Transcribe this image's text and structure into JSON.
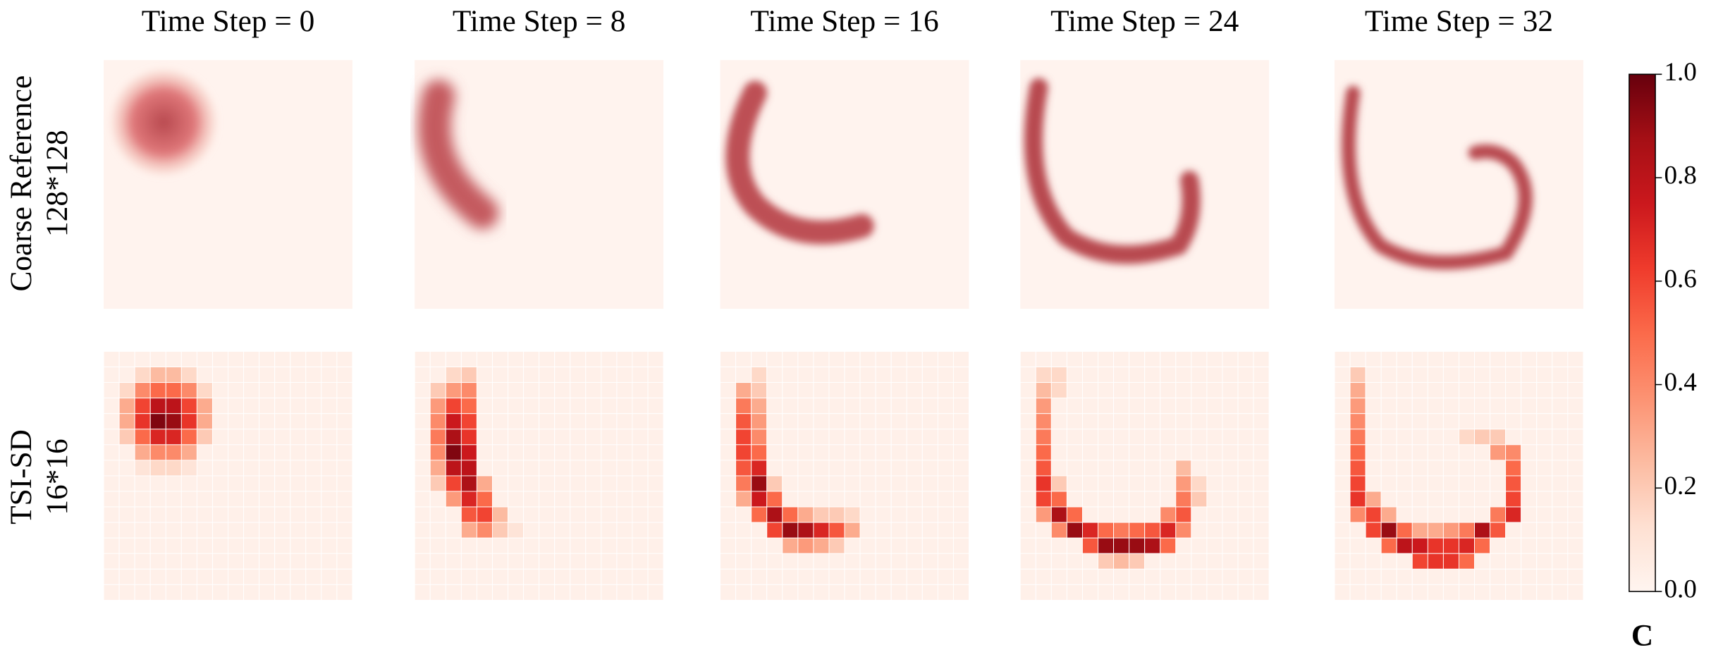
{
  "chart_data": {
    "type": "heatmap",
    "colormap": "Reds",
    "clim": [
      0,
      1
    ],
    "cticks": [
      {
        "value": 0,
        "label": "0.0"
      },
      {
        "value": 0.2,
        "label": "0.2"
      },
      {
        "value": 0.4,
        "label": "0.4"
      },
      {
        "value": 0.6,
        "label": "0.6"
      },
      {
        "value": 0.8,
        "label": "0.8"
      },
      {
        "value": 1,
        "label": "1.0"
      }
    ],
    "colorbar_label": "C",
    "column_titles": [
      "Time Step = 0",
      "Time Step = 8",
      "Time Step = 16",
      "Time Step = 24",
      "Time Step = 32"
    ],
    "row_labels": [
      [
        "Coarse Reference",
        "128*128"
      ],
      [
        "TSI-SD",
        "16*16"
      ]
    ],
    "grid_size": 16,
    "background": 0.03,
    "panels": [
      {
        "cells": [
          [
            1,
            2,
            0.15
          ],
          [
            1,
            3,
            0.25
          ],
          [
            1,
            4,
            0.25
          ],
          [
            1,
            5,
            0.15
          ],
          [
            2,
            1,
            0.15
          ],
          [
            2,
            2,
            0.4
          ],
          [
            2,
            3,
            0.5
          ],
          [
            2,
            4,
            0.5
          ],
          [
            2,
            5,
            0.4
          ],
          [
            2,
            6,
            0.15
          ],
          [
            3,
            1,
            0.3
          ],
          [
            3,
            2,
            0.6
          ],
          [
            3,
            3,
            0.8
          ],
          [
            3,
            4,
            0.8
          ],
          [
            3,
            5,
            0.6
          ],
          [
            3,
            6,
            0.3
          ],
          [
            4,
            1,
            0.3
          ],
          [
            4,
            2,
            0.65
          ],
          [
            4,
            3,
            0.95
          ],
          [
            4,
            4,
            0.9
          ],
          [
            4,
            5,
            0.65
          ],
          [
            4,
            6,
            0.3
          ],
          [
            5,
            1,
            0.2
          ],
          [
            5,
            2,
            0.5
          ],
          [
            5,
            3,
            0.7
          ],
          [
            5,
            4,
            0.7
          ],
          [
            5,
            5,
            0.5
          ],
          [
            5,
            6,
            0.2
          ],
          [
            6,
            2,
            0.3
          ],
          [
            6,
            3,
            0.4
          ],
          [
            6,
            4,
            0.4
          ],
          [
            6,
            5,
            0.3
          ],
          [
            7,
            2,
            0.1
          ],
          [
            7,
            3,
            0.15
          ],
          [
            7,
            4,
            0.15
          ],
          [
            7,
            5,
            0.1
          ]
        ]
      },
      {
        "cells": [
          [
            1,
            2,
            0.15
          ],
          [
            1,
            3,
            0.2
          ],
          [
            2,
            1,
            0.2
          ],
          [
            2,
            2,
            0.35
          ],
          [
            2,
            3,
            0.4
          ],
          [
            3,
            1,
            0.35
          ],
          [
            3,
            2,
            0.6
          ],
          [
            3,
            3,
            0.5
          ],
          [
            4,
            1,
            0.4
          ],
          [
            4,
            2,
            0.75
          ],
          [
            4,
            3,
            0.6
          ],
          [
            5,
            1,
            0.45
          ],
          [
            5,
            2,
            0.85
          ],
          [
            5,
            3,
            0.65
          ],
          [
            6,
            1,
            0.4
          ],
          [
            6,
            2,
            0.95
          ],
          [
            6,
            3,
            0.75
          ],
          [
            7,
            1,
            0.3
          ],
          [
            7,
            2,
            0.8
          ],
          [
            7,
            3,
            0.8
          ],
          [
            8,
            1,
            0.2
          ],
          [
            8,
            2,
            0.6
          ],
          [
            8,
            3,
            0.85
          ],
          [
            8,
            4,
            0.3
          ],
          [
            9,
            2,
            0.35
          ],
          [
            9,
            3,
            0.7
          ],
          [
            9,
            4,
            0.5
          ],
          [
            10,
            3,
            0.55
          ],
          [
            10,
            4,
            0.6
          ],
          [
            10,
            5,
            0.25
          ],
          [
            11,
            3,
            0.3
          ],
          [
            11,
            4,
            0.4
          ],
          [
            11,
            5,
            0.2
          ],
          [
            11,
            6,
            0.1
          ]
        ]
      },
      {
        "cells": [
          [
            1,
            2,
            0.15
          ],
          [
            2,
            1,
            0.3
          ],
          [
            2,
            2,
            0.2
          ],
          [
            3,
            1,
            0.45
          ],
          [
            3,
            2,
            0.3
          ],
          [
            4,
            1,
            0.55
          ],
          [
            4,
            2,
            0.35
          ],
          [
            5,
            1,
            0.6
          ],
          [
            5,
            2,
            0.4
          ],
          [
            6,
            1,
            0.6
          ],
          [
            6,
            2,
            0.5
          ],
          [
            7,
            1,
            0.55
          ],
          [
            7,
            2,
            0.7
          ],
          [
            8,
            1,
            0.45
          ],
          [
            8,
            2,
            0.9
          ],
          [
            8,
            3,
            0.2
          ],
          [
            9,
            1,
            0.3
          ],
          [
            9,
            2,
            0.75
          ],
          [
            9,
            3,
            0.5
          ],
          [
            10,
            2,
            0.5
          ],
          [
            10,
            3,
            0.85
          ],
          [
            10,
            4,
            0.5
          ],
          [
            10,
            5,
            0.3
          ],
          [
            10,
            6,
            0.2
          ],
          [
            10,
            7,
            0.2
          ],
          [
            10,
            8,
            0.15
          ],
          [
            11,
            3,
            0.6
          ],
          [
            11,
            4,
            0.9
          ],
          [
            11,
            5,
            0.85
          ],
          [
            11,
            6,
            0.7
          ],
          [
            11,
            7,
            0.55
          ],
          [
            11,
            8,
            0.3
          ],
          [
            12,
            4,
            0.3
          ],
          [
            12,
            5,
            0.35
          ],
          [
            12,
            6,
            0.3
          ],
          [
            12,
            7,
            0.2
          ]
        ]
      },
      {
        "cells": [
          [
            1,
            1,
            0.15
          ],
          [
            1,
            2,
            0.15
          ],
          [
            2,
            1,
            0.25
          ],
          [
            2,
            2,
            0.15
          ],
          [
            3,
            1,
            0.35
          ],
          [
            4,
            1,
            0.4
          ],
          [
            5,
            1,
            0.45
          ],
          [
            6,
            1,
            0.5
          ],
          [
            7,
            1,
            0.55
          ],
          [
            7,
            10,
            0.25
          ],
          [
            8,
            1,
            0.65
          ],
          [
            8,
            2,
            0.2
          ],
          [
            8,
            10,
            0.35
          ],
          [
            8,
            11,
            0.15
          ],
          [
            9,
            1,
            0.6
          ],
          [
            9,
            2,
            0.5
          ],
          [
            9,
            10,
            0.45
          ],
          [
            9,
            11,
            0.2
          ],
          [
            10,
            1,
            0.35
          ],
          [
            10,
            2,
            0.85
          ],
          [
            10,
            3,
            0.5
          ],
          [
            10,
            9,
            0.4
          ],
          [
            10,
            10,
            0.55
          ],
          [
            11,
            2,
            0.4
          ],
          [
            11,
            3,
            0.9
          ],
          [
            11,
            4,
            0.7
          ],
          [
            11,
            5,
            0.5
          ],
          [
            11,
            6,
            0.45
          ],
          [
            11,
            7,
            0.5
          ],
          [
            11,
            8,
            0.55
          ],
          [
            11,
            9,
            0.7
          ],
          [
            11,
            10,
            0.4
          ],
          [
            12,
            4,
            0.55
          ],
          [
            12,
            5,
            0.9
          ],
          [
            12,
            6,
            0.9
          ],
          [
            12,
            7,
            0.9
          ],
          [
            12,
            8,
            0.85
          ],
          [
            12,
            9,
            0.5
          ],
          [
            13,
            5,
            0.2
          ],
          [
            13,
            6,
            0.25
          ],
          [
            13,
            7,
            0.2
          ]
        ]
      },
      {
        "cells": [
          [
            1,
            1,
            0.2
          ],
          [
            2,
            1,
            0.3
          ],
          [
            3,
            1,
            0.35
          ],
          [
            4,
            1,
            0.4
          ],
          [
            5,
            1,
            0.45
          ],
          [
            5,
            8,
            0.15
          ],
          [
            5,
            9,
            0.2
          ],
          [
            5,
            10,
            0.2
          ],
          [
            6,
            1,
            0.5
          ],
          [
            6,
            10,
            0.35
          ],
          [
            6,
            11,
            0.4
          ],
          [
            7,
            1,
            0.55
          ],
          [
            7,
            11,
            0.5
          ],
          [
            8,
            1,
            0.6
          ],
          [
            8,
            11,
            0.55
          ],
          [
            9,
            1,
            0.65
          ],
          [
            9,
            2,
            0.3
          ],
          [
            9,
            11,
            0.6
          ],
          [
            10,
            1,
            0.4
          ],
          [
            10,
            2,
            0.6
          ],
          [
            10,
            3,
            0.3
          ],
          [
            10,
            10,
            0.45
          ],
          [
            10,
            11,
            0.7
          ],
          [
            11,
            2,
            0.6
          ],
          [
            11,
            3,
            0.9
          ],
          [
            11,
            4,
            0.5
          ],
          [
            11,
            5,
            0.3
          ],
          [
            11,
            6,
            0.3
          ],
          [
            11,
            7,
            0.35
          ],
          [
            11,
            8,
            0.45
          ],
          [
            11,
            9,
            0.85
          ],
          [
            11,
            10,
            0.55
          ],
          [
            12,
            3,
            0.5
          ],
          [
            12,
            4,
            0.8
          ],
          [
            12,
            5,
            0.75
          ],
          [
            12,
            6,
            0.65
          ],
          [
            12,
            7,
            0.65
          ],
          [
            12,
            8,
            0.7
          ],
          [
            12,
            9,
            0.5
          ],
          [
            13,
            5,
            0.6
          ],
          [
            13,
            6,
            0.65
          ],
          [
            13,
            7,
            0.65
          ],
          [
            13,
            8,
            0.5
          ]
        ]
      }
    ]
  }
}
